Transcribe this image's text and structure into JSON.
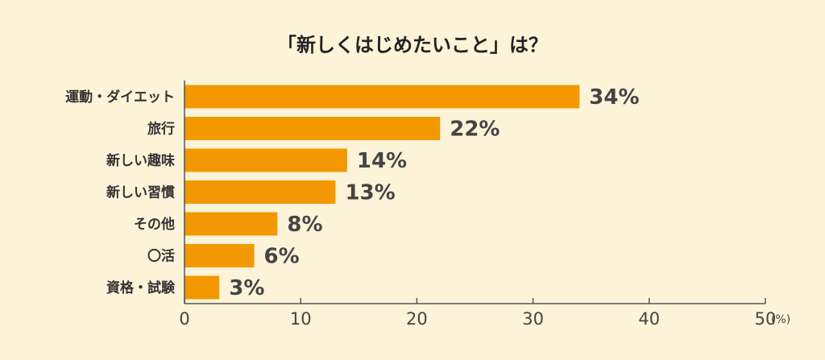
{
  "chart_data": {
    "type": "bar",
    "orientation": "horizontal",
    "title": "「新しくはじめたいこと」は？",
    "categories": [
      "運動・ダイエット",
      "旅行",
      "新しい趣味",
      "新しい習慣",
      "その他",
      "〇活",
      "資格・試験"
    ],
    "values": [
      34,
      22,
      14,
      13,
      8,
      6,
      3
    ],
    "value_labels": [
      "34%",
      "22%",
      "14%",
      "13%",
      "8%",
      "6%",
      "3%"
    ],
    "xlim": [
      0,
      50
    ],
    "xticks": [
      0,
      10,
      20,
      30,
      40,
      50
    ],
    "xtick_labels": [
      "0",
      "10",
      "20",
      "30",
      "40",
      "50"
    ],
    "xunit": "(%)",
    "grid": false,
    "legend": "none",
    "colors": {
      "bar": "#f39800",
      "axis": "#555555",
      "background": "#fdf3d8"
    }
  }
}
